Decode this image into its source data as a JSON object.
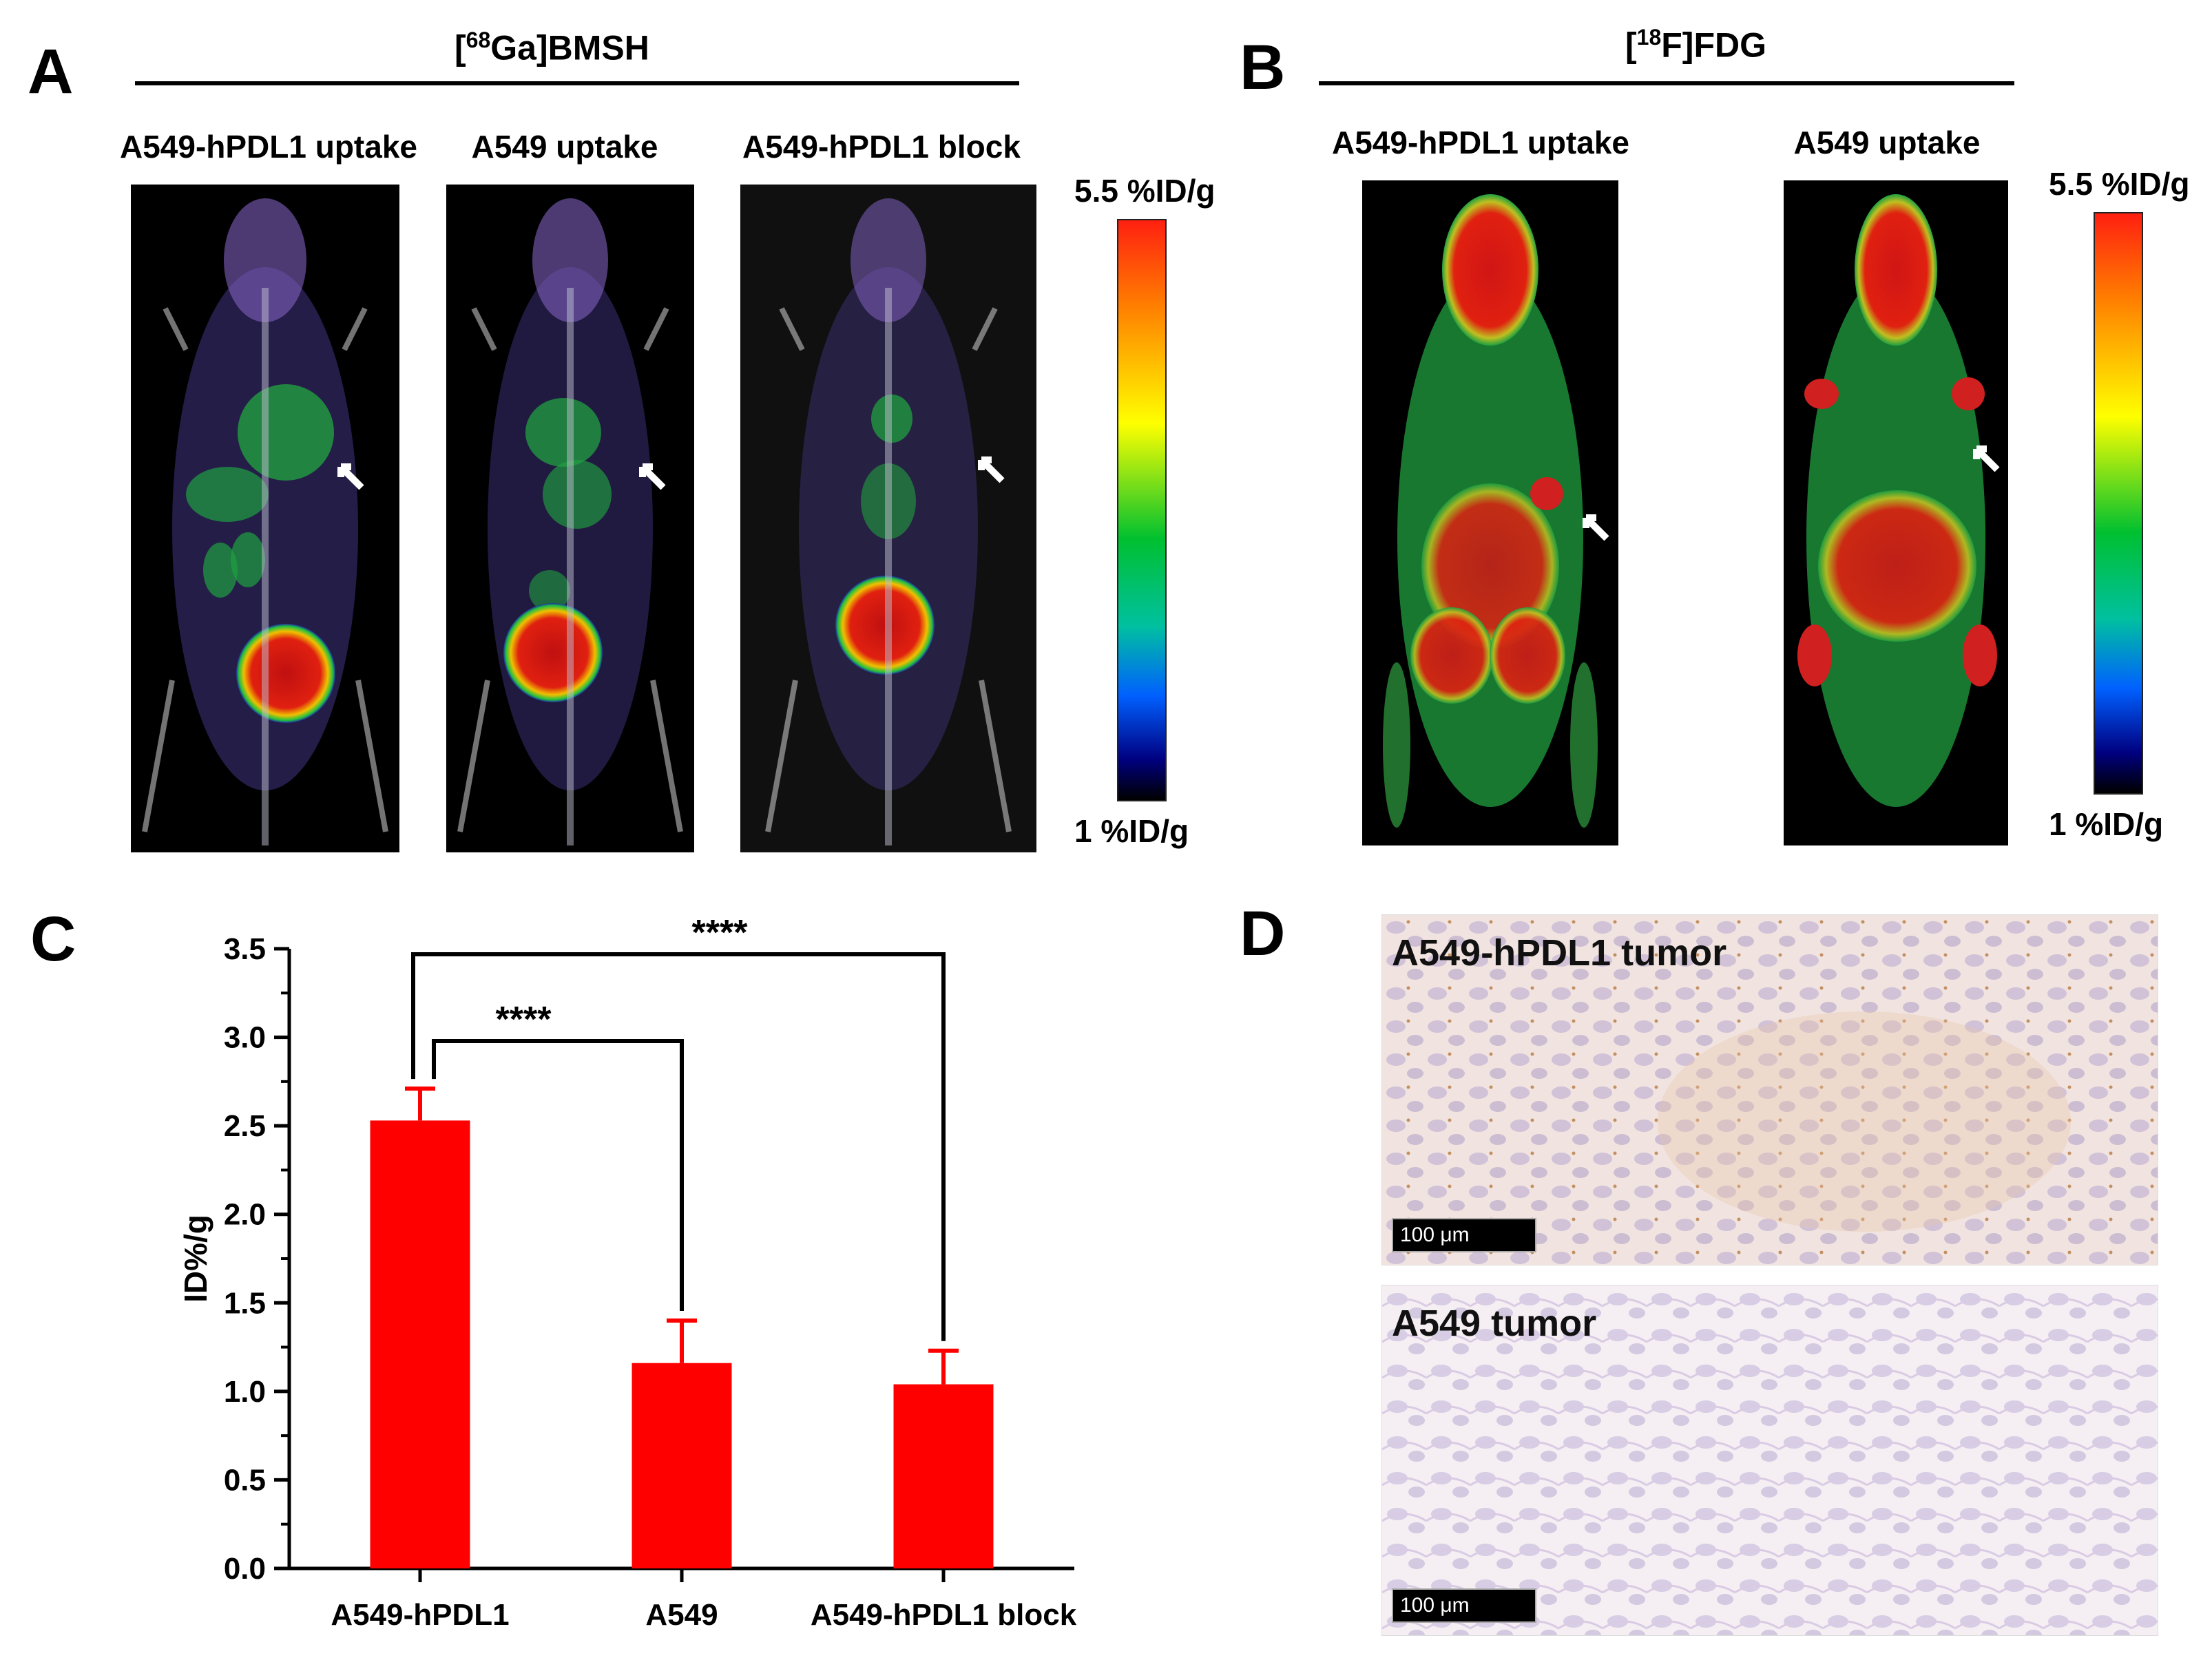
{
  "panels": {
    "a": {
      "letter": "A",
      "title_pre": "[",
      "title_sup": "68",
      "title_post": "Ga]BMSH",
      "images": [
        "A549-hPDL1 uptake",
        "A549  uptake",
        "A549-hPDL1 block"
      ],
      "scale_max": "5.5 %ID/g",
      "scale_min": "1 %ID/g"
    },
    "b": {
      "letter": "B",
      "title_pre": "[",
      "title_sup": "18",
      "title_post": "F]FDG",
      "images": [
        "A549-hPDL1 uptake",
        "A549  uptake"
      ],
      "scale_max": "5.5 %ID/g",
      "scale_min": "1 %ID/g"
    },
    "c": {
      "letter": "C"
    },
    "d": {
      "letter": "D",
      "top_label": "A549-hPDL1 tumor",
      "bottom_label": "A549 tumor",
      "scalebar_top": "100 μm",
      "scalebar_bottom": "100 μm"
    }
  },
  "colors": {
    "bar": "#ff0000",
    "axis": "#000000"
  },
  "chart_data": {
    "type": "bar",
    "categories": [
      "A549-hPDL1",
      "A549",
      "A549-hPDL1 block"
    ],
    "values": [
      2.53,
      1.16,
      1.04
    ],
    "errors": [
      0.18,
      0.24,
      0.19
    ],
    "ylabel": "ID%/g",
    "xlabel": "",
    "ylim": [
      0,
      3.5
    ],
    "yticks": [
      "0.0",
      "0.5",
      "1.0",
      "1.5",
      "2.0",
      "2.5",
      "3.0",
      "3.5"
    ],
    "significance": [
      {
        "from": 0,
        "to": 1,
        "label": "****"
      },
      {
        "from": 0,
        "to": 2,
        "label": "****"
      }
    ]
  }
}
